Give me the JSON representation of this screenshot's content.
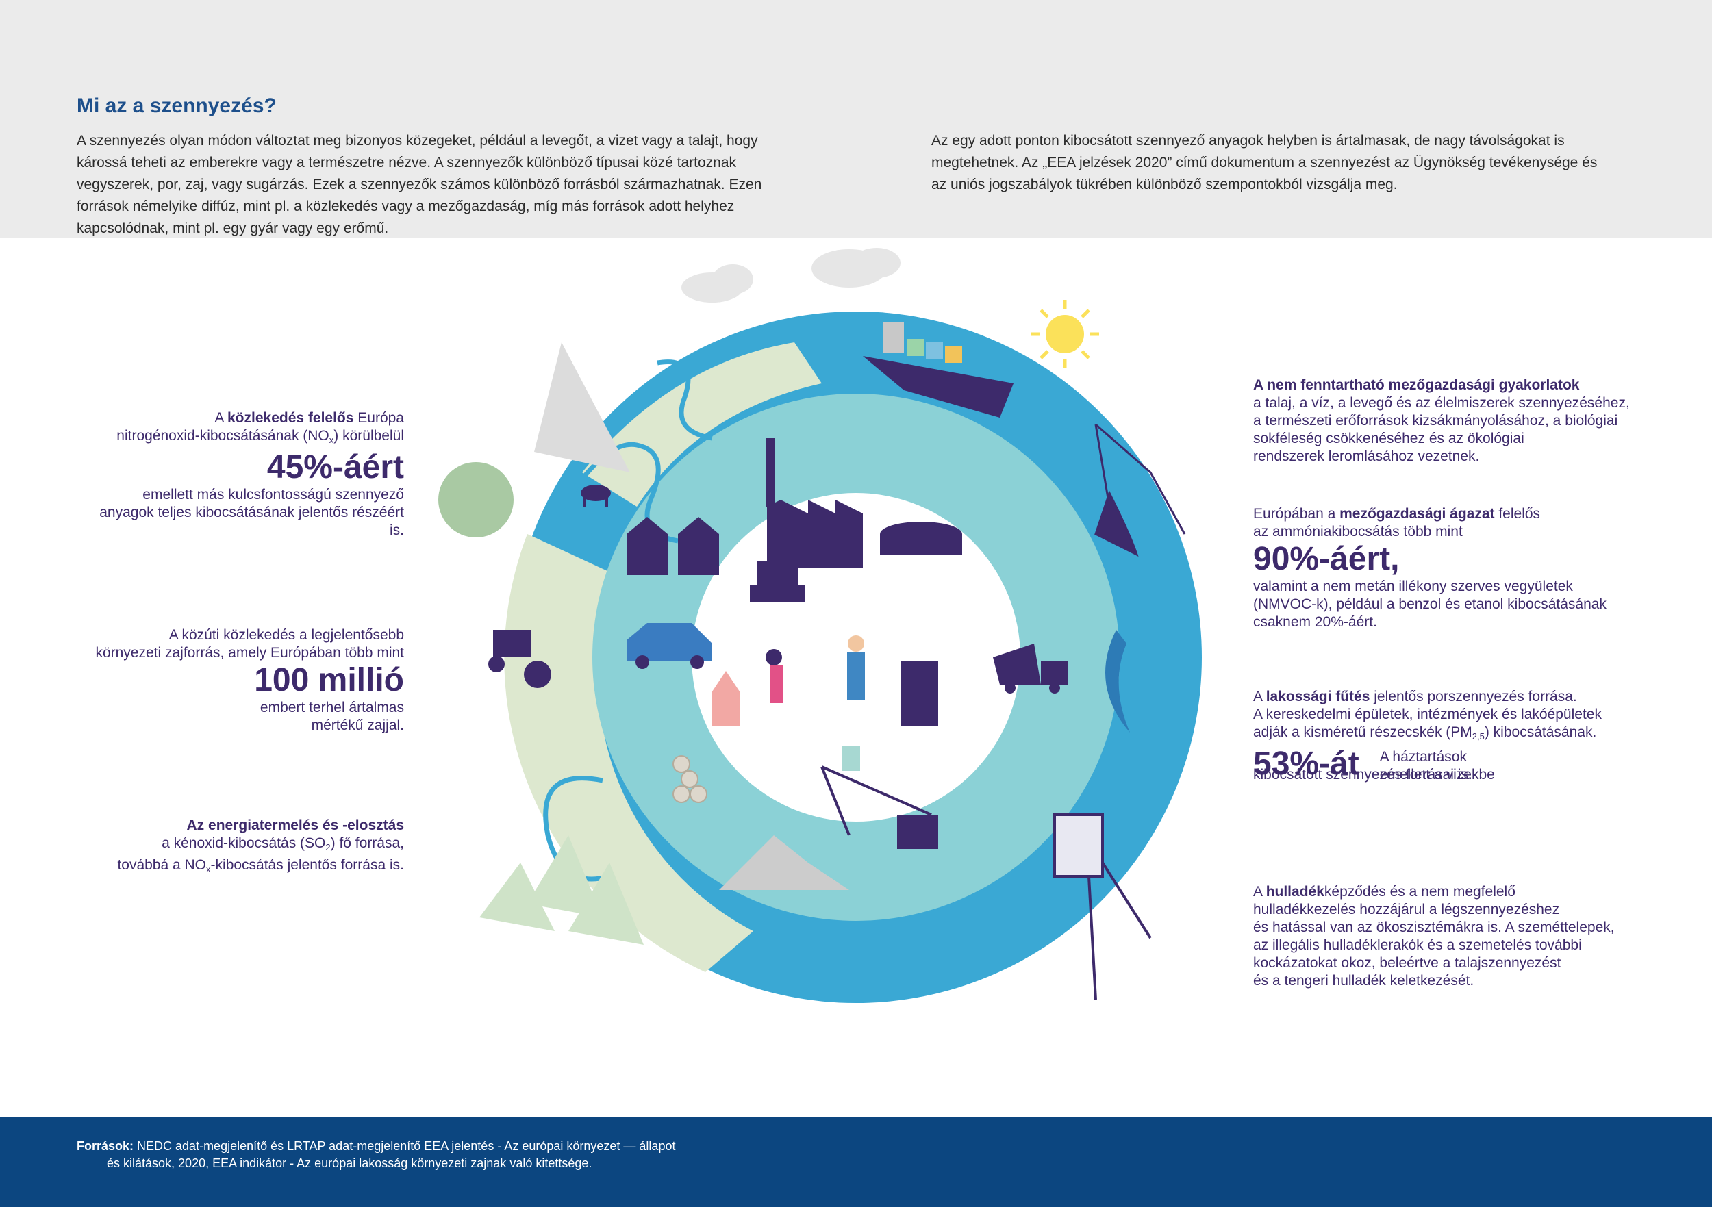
{
  "header": {
    "title": "Mi az a szennyezés?",
    "intro_left": "A szennyezés olyan módon változtat meg bizonyos közegeket, például a levegőt, a vizet vagy a talajt, hogy károssá teheti az emberekre vagy a természetre nézve. A szennyezők különböző típusai közé tartoznak vegyszerek, por, zaj, vagy sugárzás. Ezek a szennyezők számos különböző forrásból származhatnak. Ezen források némelyike diffúz, mint pl. a közlekedés vagy a mezőgazdaság, míg más források adott helyhez kapcsolódnak, mint pl. egy gyár vagy egy erőmű.",
    "intro_right": "Az egy adott ponton kibocsátott szennyező anyagok helyben is ártalmasak, de nagy távolságokat is megtehetnek. Az „EEA jelzések 2020” című dokumentum a szennyezést az Ügynökség tevékenysége és az uniós jogszabályok tükrében különböző szempontokból vizsgálja meg."
  },
  "stats_left": {
    "transport": {
      "pre": "A ",
      "bold": "közlekedés felelős",
      "post": " Európa",
      "line2": "nitrogénoxid-kibocsátásának (NO",
      "sub": "x",
      "line2_end": ") körülbelül",
      "big": "45%-áért",
      "line3": "emellett más kulcsfontosságú szennyező",
      "line4": "anyagok teljes kibocsátásának jelentős részéért is."
    },
    "noise": {
      "line1": "A közúti közlekedés a legjelentősebb",
      "line2": "környezeti zajforrás, amely Európában több mint",
      "big": "100 millió",
      "line3": "embert terhel ártalmas",
      "line4": "mértékű zajjal."
    },
    "energy": {
      "bold": "Az energiatermelés és -elosztás",
      "line2a": "a kénoxid-kibocsátás (SO",
      "sub1": "2",
      "line2b": ") fő forrása,",
      "line3a": "továbbá a NO",
      "sub2": "x",
      "line3b": "-kibocsátás jelentős forrása is."
    }
  },
  "stats_right": {
    "agri_practices": {
      "bold": "A nem fenntartható mezőgazdasági gyakorlatok",
      "lines": [
        "a talaj, a víz, a levegő és az élelmiszerek szennyezéséhez,",
        "a természeti erőforrások kizsákmányolásához, a biológiai",
        "sokféleség csökkenéséhez és az ökológiai",
        "rendszerek leromlásához vezetnek."
      ]
    },
    "agri_sector": {
      "pre": "Európában a ",
      "bold": "mezőgazdasági ágazat",
      "post": " felelős",
      "line2": "az ammóniakibocsátás több mint",
      "big": "90%-áért,",
      "lines": [
        "valamint a nem metán illékony szerves vegyületek",
        "(NMVOC-k), például a benzol és etanol kibocsátásának",
        "csaknem 20%-áért."
      ]
    },
    "heating": {
      "pre": "A ",
      "bold": "lakossági fűtés",
      "post": " jelentős porszennyezés forrása.",
      "line2": "A kereskedelmi épületek, intézmények és lakóépületek",
      "line3a": "adják a kisméretű részecskék (PM",
      "sub": "2,5",
      "line3b": ") kibocsátásának.",
      "big": "53%-át",
      "side1": "A háztartások",
      "side2": "emellett a vizekbe",
      "line4": "kibocsátott szennyezés forrásai is."
    },
    "waste": {
      "pre": "A ",
      "bold": "hulladék",
      "post": "képződés és a nem megfelelő",
      "lines": [
        "hulladékkezelés hozzájárul a légszennyezéshez",
        "és hatással van az ökoszisztémákra is. A szeméttelepek,",
        "az illegális hulladéklerakók és a szemetelés további",
        "kockázatokat okoz, beleértve a talajszennyezést",
        "és a tengeri hulladék keletkezését."
      ]
    }
  },
  "footer": {
    "label": "Források:",
    "line1": " NEDC adat-megjelenítő és LRTAP adat-megjelenítő EEA jelentés - Az európai környezet — állapot",
    "line2": "és kilátások, 2020, EEA indikátor - Az európai lakosság környezeti zajnak való kitettsége."
  },
  "colors": {
    "title": "#1d4f8b",
    "stat_text": "#3d2a6b",
    "footer_bg": "#0c4680",
    "ring_outer": "#3aa8d4",
    "ring_inner": "#8bd1d6",
    "land": "#dde8cf",
    "purple": "#3d2a6b"
  },
  "icons": [
    "factory-icon",
    "houses-icon",
    "tractor-icon",
    "car-icon",
    "ship-icon",
    "sun-icon",
    "cloud-icon",
    "fishing-boat-icon",
    "whale-icon",
    "oil-rig-icon",
    "crane-icon",
    "trees-icon",
    "cow-icon",
    "truck-icon",
    "armchair-icon",
    "family-icon"
  ]
}
